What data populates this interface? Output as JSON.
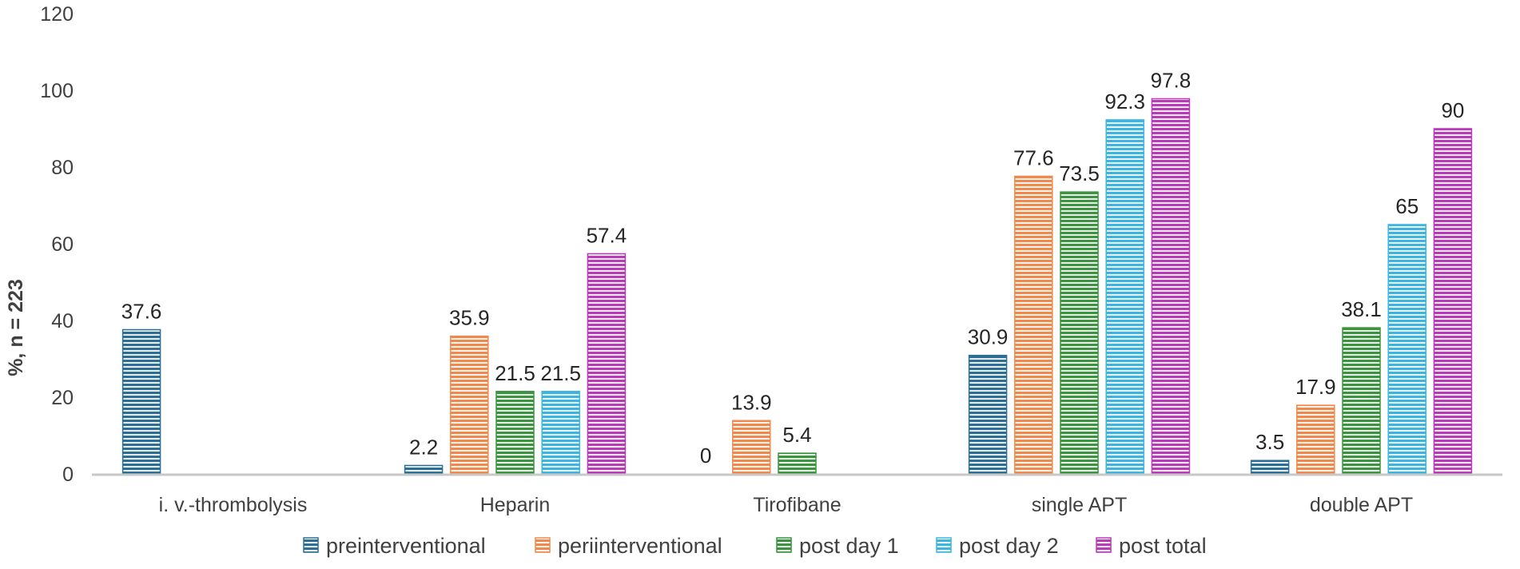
{
  "chart_data": {
    "type": "bar",
    "title": "",
    "xlabel": "",
    "ylabel": "%, n = 223",
    "ylim": [
      0,
      120
    ],
    "yticks": [
      0,
      20,
      40,
      60,
      80,
      100,
      120
    ],
    "grid": false,
    "legend_position": "bottom",
    "categories": [
      "i. v.-thrombolysis",
      "Heparin",
      "Tirofibane",
      "single APT",
      "double APT"
    ],
    "series": [
      {
        "name": "preinterventional",
        "color": "#2E6F95",
        "values": [
          37.6,
          2.2,
          0,
          30.9,
          3.5
        ]
      },
      {
        "name": "periinterventional",
        "color": "#EE8A4E",
        "values": [
          null,
          35.9,
          13.9,
          77.6,
          17.9
        ]
      },
      {
        "name": "post day 1",
        "color": "#3C9440",
        "values": [
          null,
          21.5,
          5.4,
          73.5,
          38.1
        ]
      },
      {
        "name": "post day 2",
        "color": "#3DB5E0",
        "values": [
          null,
          21.5,
          null,
          92.3,
          65
        ]
      },
      {
        "name": "post total",
        "color": "#B83BB8",
        "values": [
          null,
          57.4,
          null,
          97.8,
          90
        ]
      }
    ]
  }
}
